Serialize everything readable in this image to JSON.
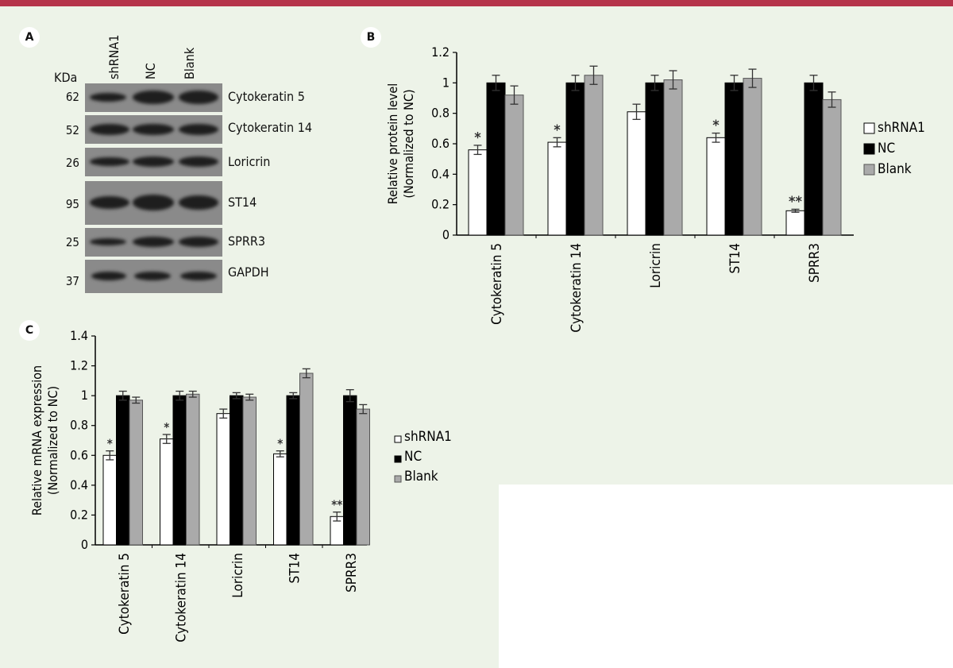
{
  "panel_labels": {
    "a": "A",
    "b": "B",
    "c": "C"
  },
  "blot": {
    "kda_header": "KDa",
    "lanes": [
      "shRNA1",
      "NC",
      "Blank"
    ],
    "rows": [
      {
        "kda": "62",
        "name": "Cytokeratin 5"
      },
      {
        "kda": "52",
        "name": "Cytokeratin 14"
      },
      {
        "kda": "26",
        "name": "Loricrin"
      },
      {
        "kda": "95",
        "name": "ST14"
      },
      {
        "kda": "25",
        "name": "SPRR3"
      },
      {
        "kda": "37",
        "name": "GAPDH"
      }
    ]
  },
  "colors": {
    "shRNA1": "#ffffff",
    "NC": "#000000",
    "Blank": "#aaaaaa",
    "accent_bar": "#b5344a",
    "background": "#edf3e8"
  },
  "chart_data": [
    {
      "type": "bar",
      "panel": "B",
      "categories": [
        "Cytokeratin 5",
        "Cytokeratin 14",
        "Loricrin",
        "ST14",
        "SPRR3"
      ],
      "ylabel": [
        "Relative protein level",
        "(Normalized to NC)"
      ],
      "ylim": [
        0,
        1.2
      ],
      "yticks": [
        "0",
        "0.2",
        "0.4",
        "0.6",
        "0.8",
        "1",
        "1.2"
      ],
      "legend_position": "right",
      "series": [
        {
          "name": "shRNA1",
          "values": [
            0.56,
            0.61,
            0.81,
            0.64,
            0.16
          ],
          "errors": [
            0.03,
            0.03,
            0.05,
            0.03,
            0.01
          ],
          "significance": [
            "*",
            "*",
            "",
            "*",
            "**"
          ]
        },
        {
          "name": "NC",
          "values": [
            1.0,
            1.0,
            1.0,
            1.0,
            1.0
          ],
          "errors": [
            0.05,
            0.05,
            0.05,
            0.05,
            0.05
          ]
        },
        {
          "name": "Blank",
          "values": [
            0.92,
            1.05,
            1.02,
            1.03,
            0.89
          ],
          "errors": [
            0.06,
            0.06,
            0.06,
            0.06,
            0.05
          ]
        }
      ]
    },
    {
      "type": "bar",
      "panel": "C",
      "categories": [
        "Cytokeratin 5",
        "Cytokeratin 14",
        "Loricrin",
        "ST14",
        "SPRR3"
      ],
      "ylabel": [
        "Relative mRNA expression",
        "(Normalized to NC)"
      ],
      "ylim": [
        0,
        1.4
      ],
      "yticks": [
        "0",
        "0.2",
        "0.4",
        "0.6",
        "0.8",
        "1",
        "1.2",
        "1.4"
      ],
      "legend_position": "right",
      "series": [
        {
          "name": "shRNA1",
          "values": [
            0.6,
            0.71,
            0.88,
            0.61,
            0.19
          ],
          "errors": [
            0.03,
            0.03,
            0.03,
            0.02,
            0.03
          ],
          "significance": [
            "*",
            "*",
            "",
            "*",
            "**"
          ]
        },
        {
          "name": "NC",
          "values": [
            1.0,
            1.0,
            1.0,
            1.0,
            1.0
          ],
          "errors": [
            0.03,
            0.03,
            0.02,
            0.02,
            0.04
          ]
        },
        {
          "name": "Blank",
          "values": [
            0.97,
            1.01,
            0.99,
            1.15,
            0.91
          ],
          "errors": [
            0.02,
            0.02,
            0.02,
            0.03,
            0.03
          ]
        }
      ]
    }
  ]
}
